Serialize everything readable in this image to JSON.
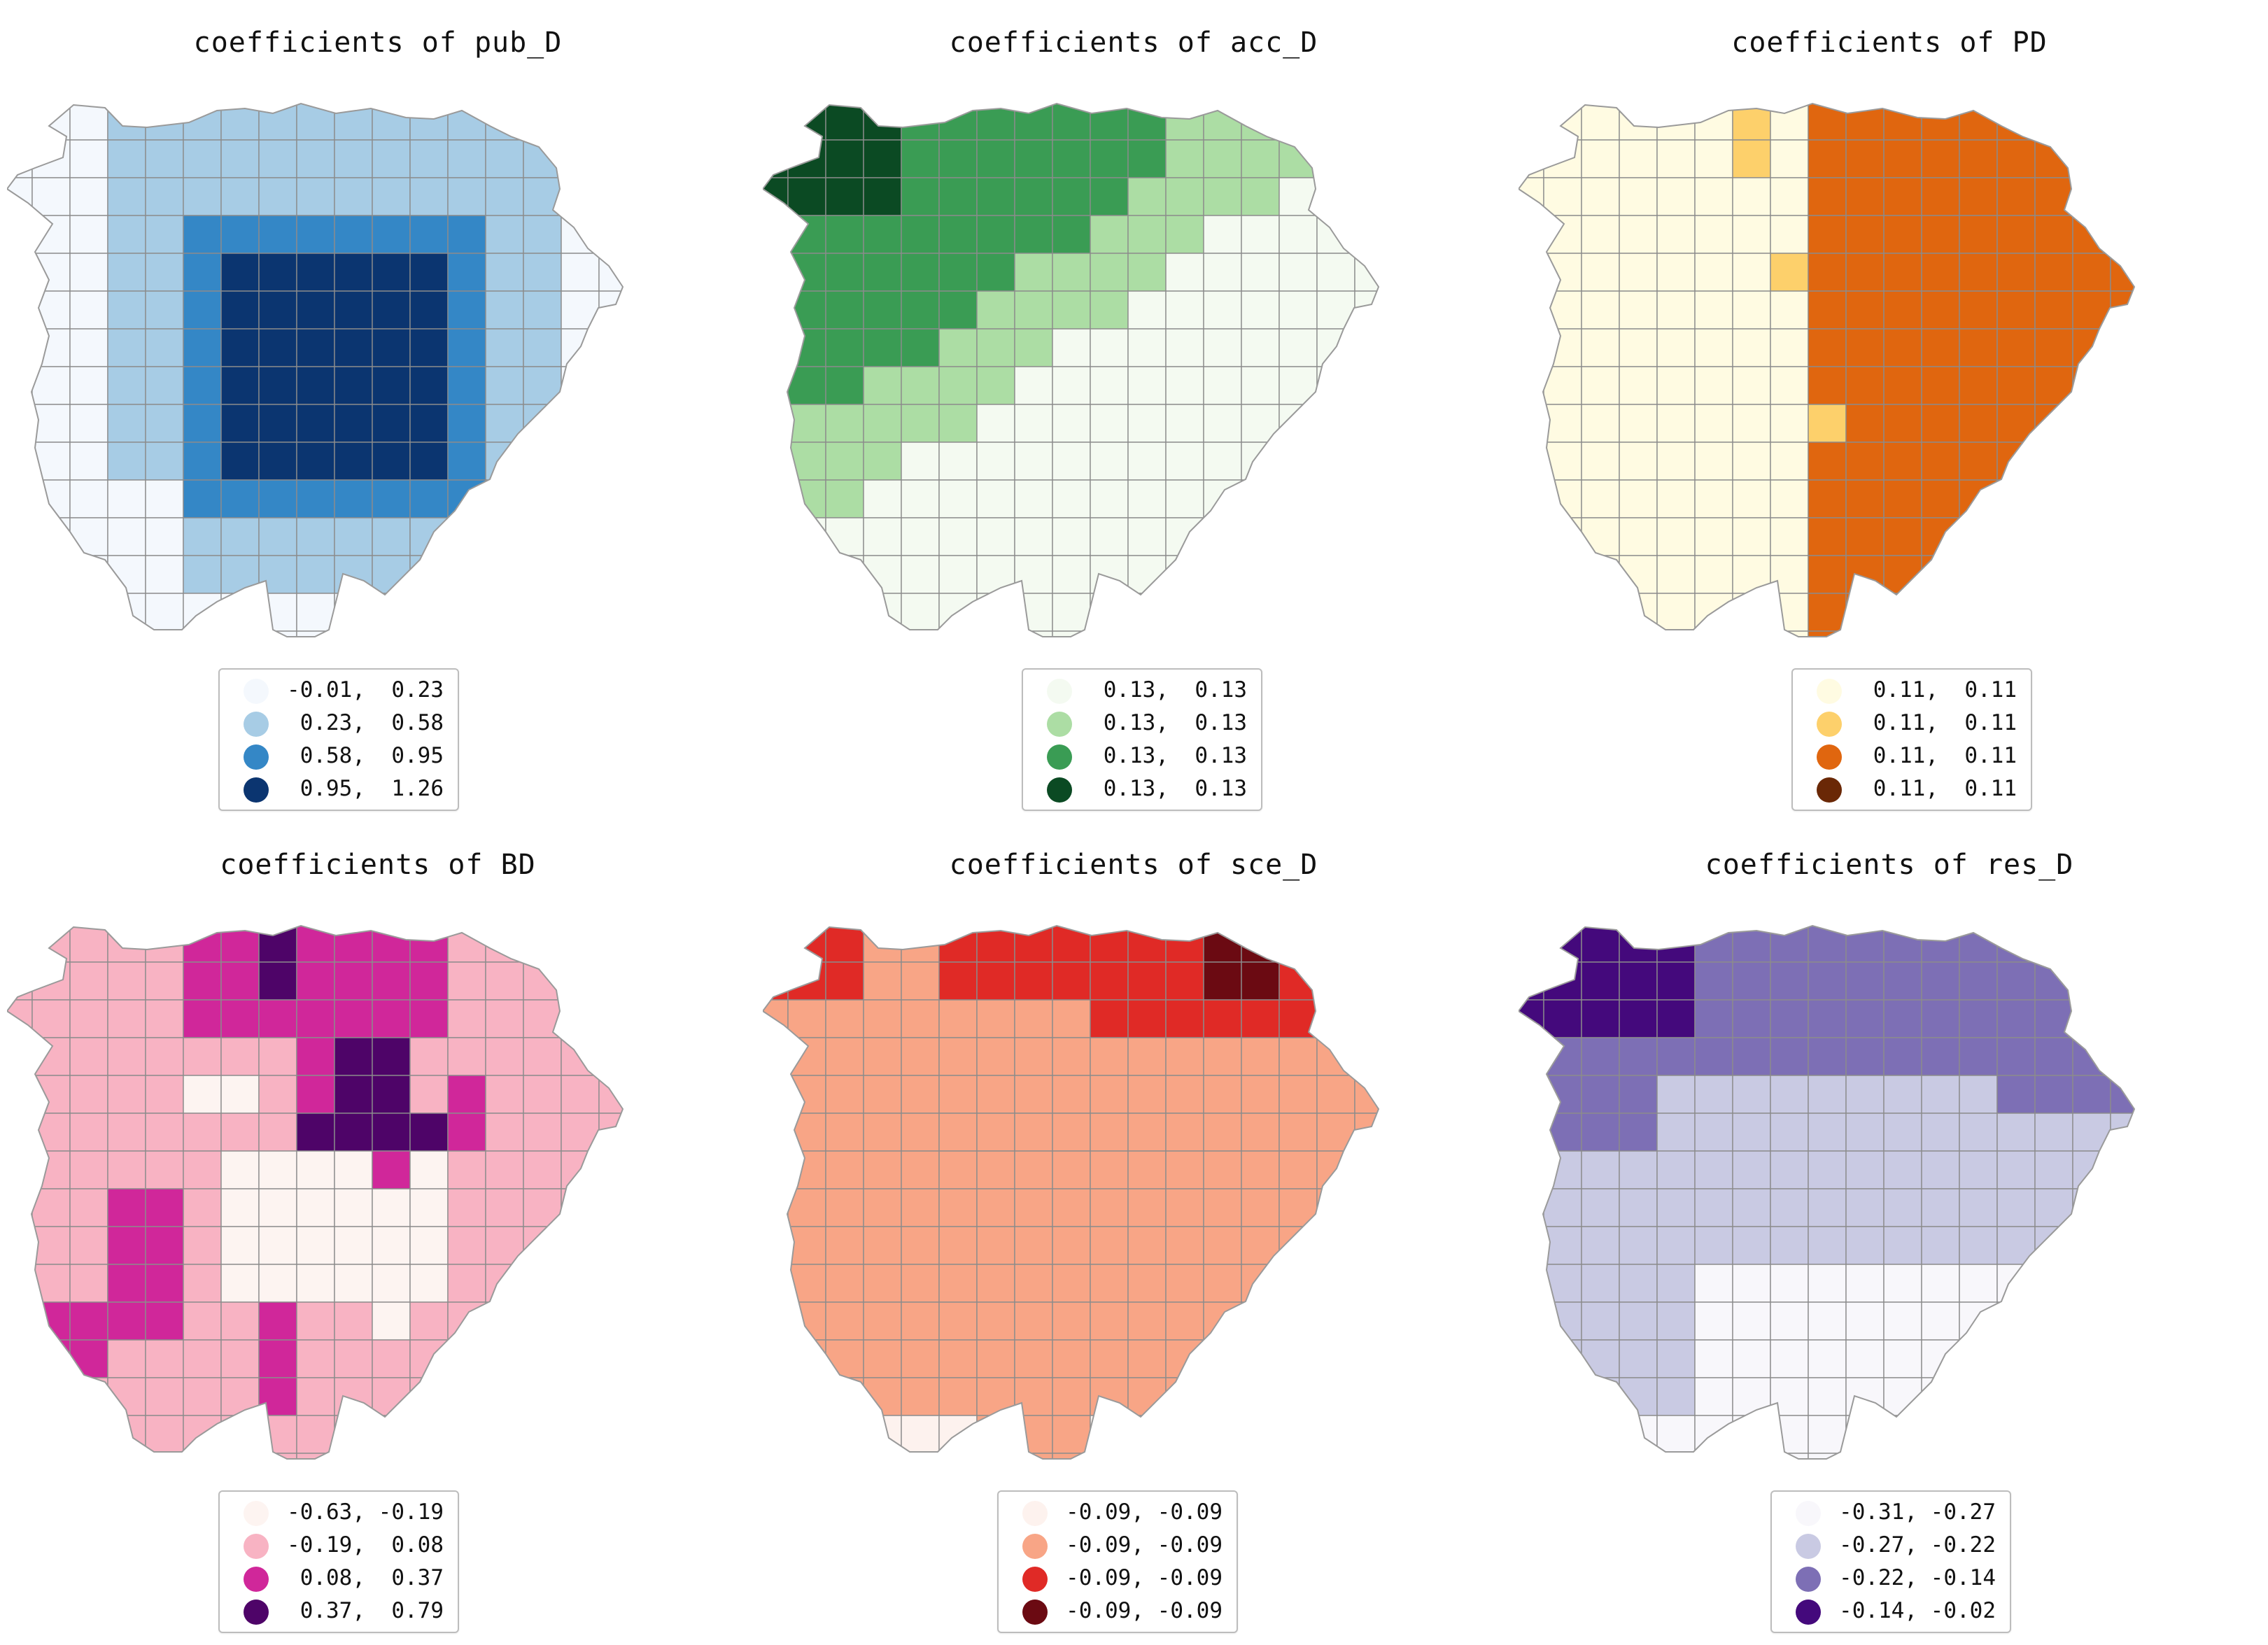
{
  "chart_data": [
    {
      "type": "heatmap",
      "title": "coefficients of pub_D",
      "pattern": "center",
      "legend": [
        {
          "label": "-0.01,  0.23",
          "color": "#f4f8fd"
        },
        {
          "label": "0.23,  0.58",
          "color": "#a7cce5"
        },
        {
          "label": "0.58,  0.95",
          "color": "#3487c6"
        },
        {
          "label": "0.95,  1.26",
          "color": "#0b3570"
        }
      ]
    },
    {
      "type": "heatmap",
      "title": "coefficients of acc_D",
      "pattern": "diagonal_nw",
      "legend": [
        {
          "label": "0.13,  0.13",
          "color": "#f4faf1"
        },
        {
          "label": "0.13,  0.13",
          "color": "#acdda4"
        },
        {
          "label": "0.13,  0.13",
          "color": "#3a9c54"
        },
        {
          "label": "0.13,  0.13",
          "color": "#0b4a23"
        }
      ]
    },
    {
      "type": "heatmap",
      "title": "coefficients of PD",
      "pattern": "vertical_split",
      "legend": [
        {
          "label": "0.11,  0.11",
          "color": "#fffbe2"
        },
        {
          "label": "0.11,  0.11",
          "color": "#fdd06b"
        },
        {
          "label": "0.11,  0.11",
          "color": "#e0660f"
        },
        {
          "label": "0.11,  0.11",
          "color": "#6a2806"
        }
      ]
    },
    {
      "type": "heatmap",
      "title": "coefficients of BD",
      "pattern": "patches",
      "legend": [
        {
          "label": "-0.63, -0.19",
          "color": "#fdf4f1"
        },
        {
          "label": "-0.19,  0.08",
          "color": "#f8b3c3"
        },
        {
          "label": "0.08,  0.37",
          "color": "#d0279a"
        },
        {
          "label": "0.37,  0.79",
          "color": "#4e0468"
        }
      ]
    },
    {
      "type": "heatmap",
      "title": "coefficients of sce_D",
      "pattern": "top_band",
      "legend": [
        {
          "label": "-0.09, -0.09",
          "color": "#fdf2ee"
        },
        {
          "label": "-0.09, -0.09",
          "color": "#f8a586"
        },
        {
          "label": "-0.09, -0.09",
          "color": "#e02a26"
        },
        {
          "label": "-0.09, -0.09",
          "color": "#6b0a12"
        }
      ]
    },
    {
      "type": "heatmap",
      "title": "coefficients of res_D",
      "pattern": "horizontal_bands",
      "legend": [
        {
          "label": "-0.31, -0.27",
          "color": "#f8f7fb"
        },
        {
          "label": "-0.27, -0.22",
          "color": "#c9cae3"
        },
        {
          "label": "-0.22, -0.14",
          "color": "#7d6fb5"
        },
        {
          "label": "-0.14, -0.02",
          "color": "#44097c"
        }
      ]
    }
  ]
}
